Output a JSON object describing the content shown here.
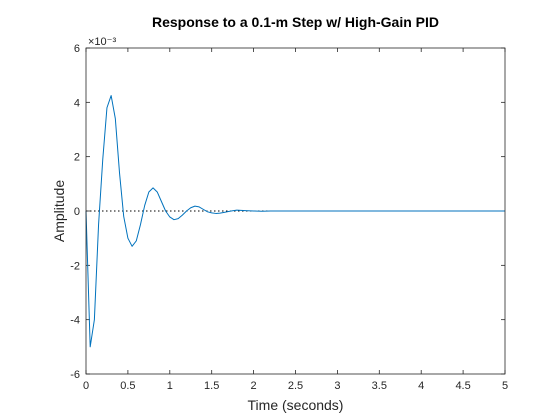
{
  "chart_data": {
    "type": "line",
    "title": "Response to a 0.1-m Step w/ High-Gain PID",
    "xlabel": "Time (seconds)",
    "ylabel": "Amplitude",
    "xlim": [
      0,
      5
    ],
    "ylim": [
      -6,
      6
    ],
    "y_multiplier": "×10⁻³",
    "x_ticks": [
      0,
      0.5,
      1,
      1.5,
      2,
      2.5,
      3,
      3.5,
      4,
      4.5,
      5
    ],
    "x_tick_labels": [
      "0",
      "0.5",
      "1",
      "1.5",
      "2",
      "2.5",
      "3",
      "3.5",
      "4",
      "4.5",
      "5"
    ],
    "y_ticks": [
      -6,
      -4,
      -2,
      0,
      2,
      4,
      6
    ],
    "y_tick_labels": [
      "-6",
      "-4",
      "-2",
      "0",
      "2",
      "4",
      "6"
    ],
    "grid": false,
    "reference_line": {
      "y": 0,
      "style": "dotted"
    },
    "series": [
      {
        "color": "#0072BD",
        "x": [
          0,
          0.05,
          0.1,
          0.15,
          0.2,
          0.25,
          0.3,
          0.35,
          0.4,
          0.45,
          0.5,
          0.55,
          0.6,
          0.65,
          0.7,
          0.75,
          0.8,
          0.85,
          0.9,
          0.95,
          1.0,
          1.05,
          1.1,
          1.15,
          1.2,
          1.25,
          1.3,
          1.35,
          1.4,
          1.45,
          1.5,
          1.55,
          1.6,
          1.65,
          1.7,
          1.75,
          1.8,
          1.85,
          1.9,
          2.0,
          2.1,
          2.2,
          2.5,
          3.0,
          3.5,
          4.0,
          4.5,
          5.0
        ],
        "y": [
          0,
          -5.0,
          -4.0,
          -0.5,
          1.9,
          3.8,
          4.25,
          3.4,
          1.4,
          -0.2,
          -1.0,
          -1.3,
          -1.1,
          -0.5,
          0.2,
          0.7,
          0.85,
          0.7,
          0.35,
          0.0,
          -0.22,
          -0.32,
          -0.28,
          -0.15,
          0.0,
          0.12,
          0.18,
          0.15,
          0.06,
          -0.03,
          -0.07,
          -0.09,
          -0.08,
          -0.05,
          -0.02,
          0.01,
          0.03,
          0.025,
          0.015,
          0.0,
          -0.008,
          0.0,
          0.0,
          0.0,
          0.0,
          0.0,
          0.0,
          0.0
        ]
      }
    ]
  }
}
